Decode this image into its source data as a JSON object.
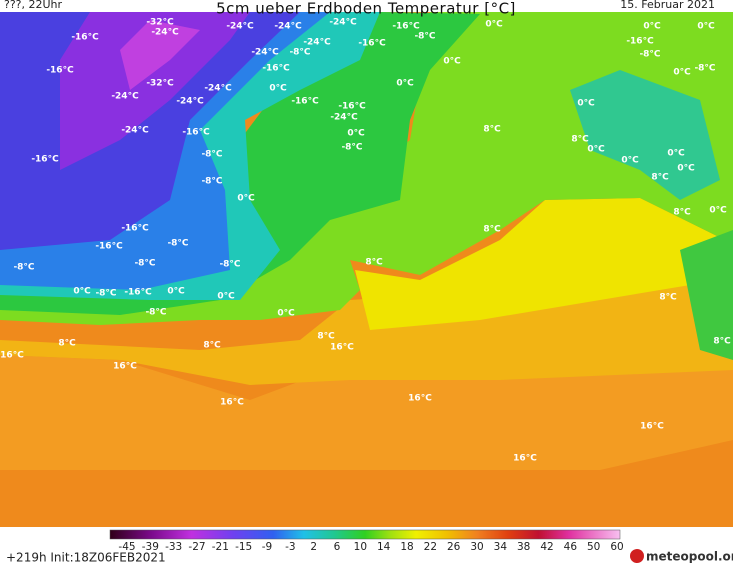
{
  "header": {
    "left": "???, 22Uhr",
    "title": "5cm ueber Erdboden Temperatur [°C]",
    "date": "15. Februar 2021"
  },
  "map_labels": [
    "-32°C",
    "-24°C",
    "-16°C",
    "-24°C",
    "-24°C",
    "-24°C",
    "-16°C",
    "0°C",
    "-8°C",
    "-24°C",
    "-24°C",
    "-8°C",
    "-16°C",
    "0°C",
    "0°C",
    "-16°C",
    "-8°C",
    "0°C",
    "-16°C",
    "-16°C",
    "-8°C",
    "0°C",
    "-32°C",
    "-24°C",
    "-24°C",
    "-24°C",
    "0°C",
    "-16°C",
    "0°C",
    "-16°C",
    "-24°C",
    "0°C",
    "-24°C",
    "-16°C",
    "0°C",
    "8°C",
    "8°C",
    "-8°C",
    "-8°C",
    "0°C",
    "0°C",
    "0°C",
    "-16°C",
    "0°C",
    "8°C",
    "-8°C",
    "0°C",
    "8°C",
    "0°C",
    "-16°C",
    "8°C",
    "-16°C",
    "-8°C",
    "8°C",
    "-8°C",
    "-8°C",
    "-8°C",
    "0°C",
    "-8°C",
    "-16°C",
    "0°C",
    "0°C",
    "8°C",
    "-8°C",
    "0°C",
    "8°C",
    "16°C",
    "8°C",
    "8°C",
    "8°C",
    "16°C",
    "16°C",
    "16°C",
    "16°C",
    "16°C",
    "16°C"
  ],
  "colorbar": {
    "ticks": [
      -45,
      -39,
      -33,
      -27,
      -21,
      -15,
      -9,
      -3,
      2,
      6,
      10,
      14,
      18,
      22,
      26,
      30,
      34,
      38,
      42,
      46,
      50,
      60
    ]
  },
  "footer": {
    "run": "+219h  Init:18Z06FEB2021",
    "logo": "meteopool.org"
  }
}
